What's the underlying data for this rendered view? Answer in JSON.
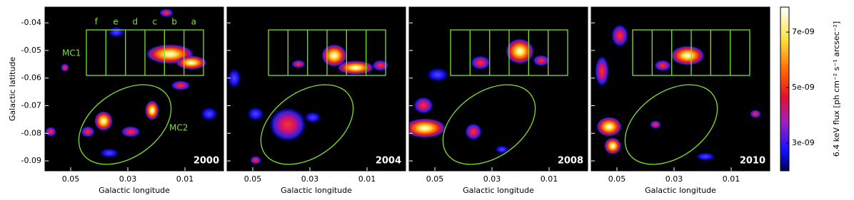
{
  "chart_data": {
    "type": "image",
    "xlabel": "Galactic longitude",
    "ylabel": "Galactic latitude",
    "xlim": [
      0.059,
      -0.0035
    ],
    "xticks": [
      0.05,
      0.03,
      0.01
    ],
    "ylim": [
      -0.0936,
      -0.0343
    ],
    "yticks": [
      -0.04,
      -0.05,
      -0.06,
      -0.07,
      -0.08,
      -0.09
    ],
    "panels": [
      {
        "label": "2000"
      },
      {
        "label": "2004"
      },
      {
        "label": "2008"
      },
      {
        "label": "2010"
      }
    ],
    "strips": [
      "f",
      "e",
      "d",
      "c",
      "b",
      "a"
    ],
    "clouds": [
      "MC1",
      "MC2"
    ],
    "colorbar": {
      "label": "6.4 keV flux [ph cm⁻² s⁻¹ arcsec⁻²]",
      "lim": [
        2e-09,
        7.9e-09
      ],
      "ticks": [
        {
          "value": 3e-09,
          "label": "3e-09"
        },
        {
          "value": 5e-09,
          "label": "5e-09"
        },
        {
          "value": 7e-09,
          "label": "7e-09"
        }
      ]
    }
  }
}
